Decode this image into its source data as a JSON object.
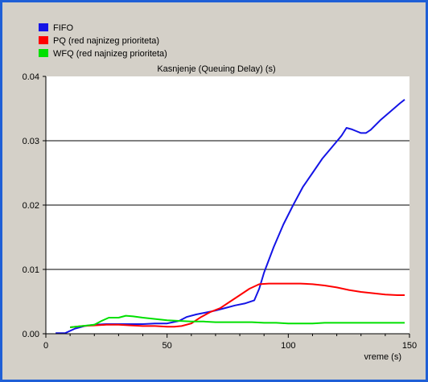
{
  "chart_data": {
    "type": "line",
    "title": "Kasnjenje (Queuing Delay) (s)",
    "xlabel": "vreme (s)",
    "ylabel": "",
    "xlim": [
      0,
      150
    ],
    "ylim": [
      0,
      0.04
    ],
    "xticks": [
      0,
      50,
      100,
      150
    ],
    "xtick_labels": [
      "0",
      "50",
      "100",
      "150"
    ],
    "yticks": [
      0,
      0.01,
      0.02,
      0.03,
      0.04
    ],
    "ytick_labels": [
      "0.00",
      "0.01",
      "0.02",
      "0.03",
      "0.04"
    ],
    "grid": "horizontal",
    "legend_position": "top-left",
    "background": "#ffffff",
    "panel_color": "#d4d0c8",
    "frame_color": "#1f5fd6",
    "series": [
      {
        "name": "FIFO",
        "color": "#1414e6",
        "x": [
          4,
          8,
          12,
          16,
          20,
          25,
          30,
          35,
          40,
          45,
          50,
          55,
          58,
          62,
          66,
          70,
          74,
          78,
          82,
          86,
          88,
          90,
          94,
          98,
          102,
          106,
          110,
          114,
          118,
          122,
          124,
          126,
          128,
          130,
          132,
          134,
          138,
          142,
          146,
          148
        ],
        "y": [
          0.0001,
          0.0001,
          0.0008,
          0.0012,
          0.0014,
          0.0015,
          0.0015,
          0.0015,
          0.0015,
          0.0016,
          0.0016,
          0.002,
          0.0026,
          0.003,
          0.0033,
          0.0036,
          0.004,
          0.0044,
          0.0047,
          0.0052,
          0.007,
          0.0095,
          0.0135,
          0.017,
          0.02,
          0.0228,
          0.025,
          0.0272,
          0.029,
          0.0308,
          0.032,
          0.0318,
          0.0315,
          0.0312,
          0.0312,
          0.0317,
          0.0332,
          0.0345,
          0.0358,
          0.0364
        ]
      },
      {
        "name": "PQ (red najnizeg prioriteta)",
        "color": "#ff0000",
        "x": [
          10,
          15,
          20,
          25,
          30,
          35,
          40,
          45,
          50,
          53,
          56,
          60,
          64,
          68,
          72,
          76,
          80,
          84,
          88,
          92,
          96,
          100,
          105,
          110,
          115,
          120,
          125,
          130,
          135,
          140,
          145,
          148
        ],
        "y": [
          0.001,
          0.0012,
          0.0013,
          0.0014,
          0.0014,
          0.0013,
          0.0012,
          0.0012,
          0.0011,
          0.0011,
          0.0012,
          0.0016,
          0.0026,
          0.0034,
          0.004,
          0.005,
          0.006,
          0.007,
          0.0077,
          0.0078,
          0.0078,
          0.0078,
          0.0078,
          0.0077,
          0.0075,
          0.0072,
          0.0068,
          0.0065,
          0.0063,
          0.0061,
          0.006,
          0.006
        ]
      },
      {
        "name": "WFQ (red najnizeg prioriteta)",
        "color": "#00e000",
        "x": [
          10,
          15,
          20,
          23,
          26,
          30,
          33,
          36,
          40,
          45,
          50,
          55,
          60,
          65,
          70,
          75,
          80,
          85,
          90,
          95,
          100,
          105,
          110,
          115,
          120,
          130,
          140,
          148
        ],
        "y": [
          0.001,
          0.0012,
          0.0014,
          0.002,
          0.0025,
          0.0025,
          0.0028,
          0.0027,
          0.0025,
          0.0023,
          0.0021,
          0.002,
          0.0019,
          0.0019,
          0.0018,
          0.0018,
          0.0018,
          0.0018,
          0.0017,
          0.0017,
          0.0016,
          0.0016,
          0.0016,
          0.0017,
          0.0017,
          0.0017,
          0.0017,
          0.0017
        ]
      }
    ]
  }
}
